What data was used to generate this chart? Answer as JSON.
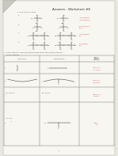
{
  "title": "Answers - Worksheet #8",
  "bg": "#e8e8e0",
  "page_bg": "#f7f6f0",
  "black": "#333333",
  "red": "#cc3333",
  "lw": 0.35,
  "fs_title": 2.8,
  "fs_body": 1.55,
  "fs_tiny": 1.3
}
